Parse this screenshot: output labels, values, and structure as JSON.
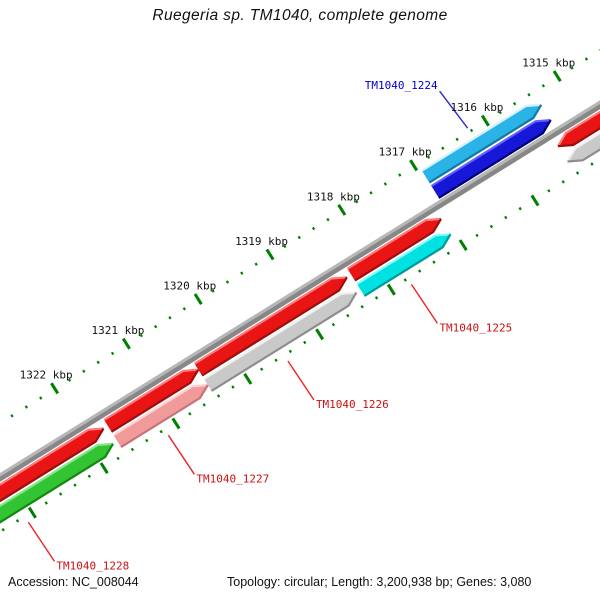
{
  "title": "Ruegeria sp. TM1040, complete genome",
  "status_bar": {
    "accession": "Accession: NC_008044",
    "summary": "Topology: circular; Length: 3,200,938 bp; Genes: 3,080"
  },
  "ruler": {
    "unit_suffix": " kbp",
    "major_ticks_kbp": [
      1314,
      1315,
      1316,
      1317,
      1318,
      1319,
      1320,
      1321,
      1322,
      1323
    ],
    "labeled_ticks_kbp": [
      1315,
      1316,
      1317,
      1318,
      1319,
      1320,
      1321,
      1322
    ],
    "minor_step_kbp": 0.2,
    "visible_range_kbp": [
      1314.0,
      1323.6
    ],
    "tick_color": "#008000"
  },
  "backbone": {
    "color_light": "#b7b7b7",
    "color_dark": "#878787"
  },
  "genes": [
    {
      "locus": "TM1040_1224",
      "side": "outer",
      "start_kbp": 1315.5,
      "end_kbp": 1316.95,
      "tip": "ne",
      "top_band": {
        "main": "#29b3e6",
        "hi": "#d6f1ff",
        "lo": "#1579a6"
      },
      "bottom_band": {
        "main": "#1717d8",
        "hi": "#6161ff",
        "lo": "#000074"
      },
      "label_color": "#0000cc",
      "leader_color": "#2a2ad0"
    },
    {
      "locus": "",
      "side": "inner",
      "start_kbp": 1314.05,
      "end_kbp": 1315.27,
      "tip": "sw",
      "top_band": {
        "main": "#e91414",
        "hi": "#ff7a7a",
        "lo": "#9b0f0f"
      },
      "bottom_band": {
        "main": "#c9c9c9",
        "hi": "#efefef",
        "lo": "#8d8d8d"
      },
      "label_color": "",
      "leader_color": ""
    },
    {
      "locus": "TM1040_1225",
      "side": "inner",
      "start_kbp": 1317.22,
      "end_kbp": 1318.31,
      "tip": "ne",
      "top_band": {
        "main": "#e91414",
        "hi": "#ff7a7a",
        "lo": "#9b0f0f"
      },
      "bottom_band": {
        "main": "#00e2e2",
        "hi": "#8cf8f8",
        "lo": "#009a9a"
      },
      "label_color": "#cc1111",
      "leader_color": "#ee2222"
    },
    {
      "locus": "TM1040_1226",
      "side": "inner",
      "start_kbp": 1318.53,
      "end_kbp": 1320.44,
      "tip": "ne",
      "top_band": {
        "main": "#e91414",
        "hi": "#ff7a7a",
        "lo": "#9b0f0f"
      },
      "bottom_band": {
        "main": "#c9c9c9",
        "hi": "#efefef",
        "lo": "#8d8d8d"
      },
      "label_color": "#cc1111",
      "leader_color": "#ee2222"
    },
    {
      "locus": "TM1040_1227",
      "side": "inner",
      "start_kbp": 1320.6,
      "end_kbp": 1321.7,
      "tip": "ne",
      "top_band": {
        "main": "#e91414",
        "hi": "#ff7a7a",
        "lo": "#9b0f0f"
      },
      "bottom_band": {
        "main": "#f09a9a",
        "hi": "#ffd2d2",
        "lo": "#c47474"
      },
      "label_color": "#cc1111",
      "leader_color": "#ee2222"
    },
    {
      "locus": "TM1040_1228",
      "side": "inner",
      "start_kbp": 1321.92,
      "end_kbp": 1323.5,
      "tip": "ne",
      "top_band": {
        "main": "#e91414",
        "hi": "#ff7a7a",
        "lo": "#9b0f0f"
      },
      "bottom_band": {
        "main": "#33c433",
        "hi": "#8ae68a",
        "lo": "#118811"
      },
      "label_color": "#cc1111",
      "leader_color": "#ee2222",
      "leader_k": 1323.1
    }
  ]
}
